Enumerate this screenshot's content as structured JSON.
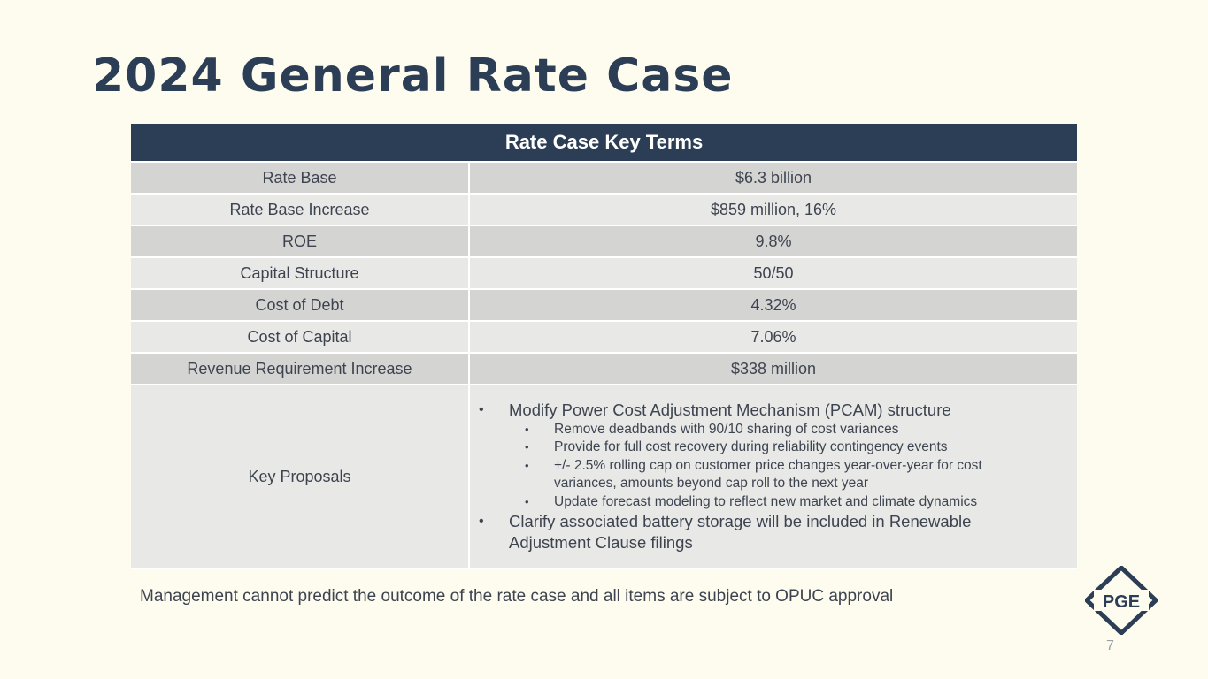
{
  "slide": {
    "title": "2024 General Rate Case",
    "page_number": "7",
    "footnote": "Management cannot predict the outcome of the rate case and all items are subject to OPUC approval"
  },
  "table": {
    "header": "Rate Case Key Terms",
    "rows": [
      {
        "label": "Rate Base",
        "value": "$6.3 billion"
      },
      {
        "label": "Rate Base Increase",
        "value": "$859 million, 16%"
      },
      {
        "label": "ROE",
        "value": "9.8%"
      },
      {
        "label": "Capital Structure",
        "value": "50/50"
      },
      {
        "label": "Cost of Debt",
        "value": "4.32%"
      },
      {
        "label": "Cost of Capital",
        "value": "7.06%"
      },
      {
        "label": "Revenue Requirement Increase",
        "value": "$338 million"
      }
    ],
    "proposals": {
      "label": "Key Proposals",
      "items": [
        {
          "text": "Modify Power Cost Adjustment Mechanism (PCAM) structure",
          "sub": [
            "Remove deadbands with 90/10 sharing of cost variances",
            "Provide for full cost recovery during reliability contingency events",
            "+/- 2.5% rolling cap on customer price changes year-over-year for cost variances, amounts beyond cap roll to the next year",
            "Update forecast modeling to reflect new market and climate dynamics"
          ]
        },
        {
          "text": "Clarify associated battery storage will be included in Renewable Adjustment Clause filings"
        }
      ]
    }
  },
  "logo": {
    "text": "PGE",
    "color": "#2b3e56"
  }
}
